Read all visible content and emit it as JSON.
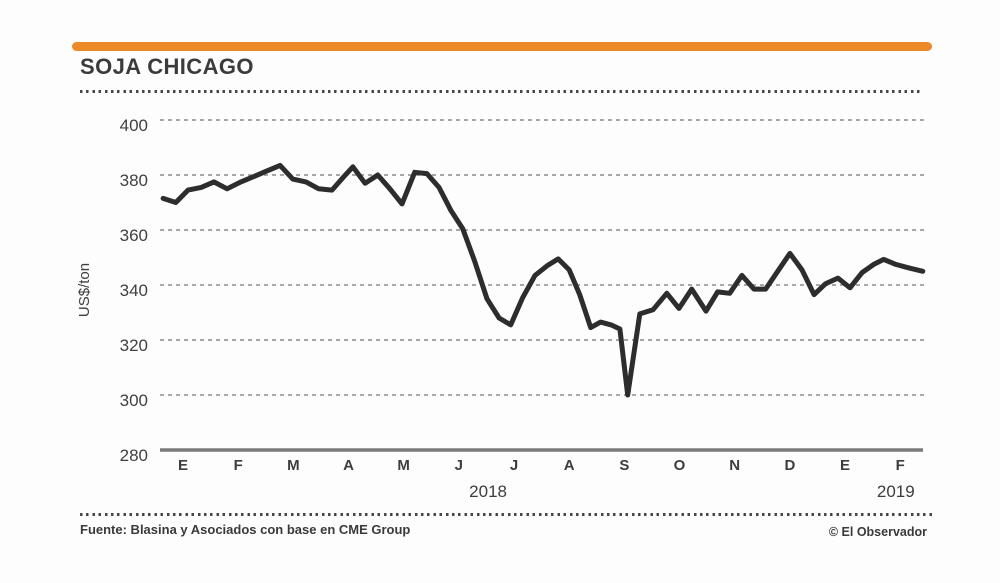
{
  "title": "SOJA CHICAGO",
  "colors": {
    "accent": "#EC8A28",
    "line": "#2D2D2D",
    "grid": "#9B9B9B",
    "axis": "#7A7A7A",
    "text": "#3D3D3D"
  },
  "footer": {
    "source": "Fuente: Blasina y Asociados con base en CME Group",
    "credit": "© El Observador"
  },
  "chart_data": {
    "type": "line",
    "title": "SOJA CHICAGO",
    "xlabel": "",
    "ylabel": "US$/ton",
    "ylim": [
      280,
      400
    ],
    "y_ticks": [
      400,
      380,
      360,
      340,
      320,
      300,
      280
    ],
    "grid": "horizontal dashed, solid bottom axis, no tick marks",
    "legend": "none",
    "x_tick_labels": [
      "E",
      "F",
      "M",
      "A",
      "M",
      "J",
      "J",
      "A",
      "S",
      "O",
      "N",
      "D",
      "E",
      "F"
    ],
    "year_labels": [
      {
        "label": "2018",
        "tick_pos": 5.53
      },
      {
        "label": "2019",
        "tick_pos": 12.92
      }
    ],
    "series": [
      {
        "name": "Soja Chicago (US$/ton)",
        "x_unit": "month index, 0 = Ene 2018 tick, 13 = Feb 2019 tick",
        "points": [
          [
            -0.36,
            371.5
          ],
          [
            -0.13,
            370.0
          ],
          [
            0.09,
            374.5
          ],
          [
            0.33,
            375.5
          ],
          [
            0.56,
            377.5
          ],
          [
            0.8,
            375.0
          ],
          [
            1.05,
            377.5
          ],
          [
            1.29,
            379.5
          ],
          [
            1.52,
            381.5
          ],
          [
            1.76,
            383.5
          ],
          [
            1.99,
            378.5
          ],
          [
            2.23,
            377.5
          ],
          [
            2.46,
            375.0
          ],
          [
            2.7,
            374.5
          ],
          [
            2.92,
            379.5
          ],
          [
            3.08,
            383.0
          ],
          [
            3.3,
            377.0
          ],
          [
            3.53,
            380.0
          ],
          [
            3.75,
            375.0
          ],
          [
            3.97,
            369.5
          ],
          [
            4.2,
            381.0
          ],
          [
            4.42,
            380.5
          ],
          [
            4.64,
            375.5
          ],
          [
            4.86,
            367.0
          ],
          [
            5.07,
            360.5
          ],
          [
            5.29,
            348.5
          ],
          [
            5.51,
            335.0
          ],
          [
            5.73,
            328.0
          ],
          [
            5.94,
            325.5
          ],
          [
            6.16,
            335.5
          ],
          [
            6.38,
            343.5
          ],
          [
            6.6,
            347.0
          ],
          [
            6.8,
            349.5
          ],
          [
            7.0,
            345.5
          ],
          [
            7.19,
            336.5
          ],
          [
            7.39,
            324.5
          ],
          [
            7.57,
            326.5
          ],
          [
            7.76,
            325.5
          ],
          [
            7.92,
            324.0
          ],
          [
            8.06,
            300.0
          ],
          [
            8.28,
            329.5
          ],
          [
            8.52,
            331.0
          ],
          [
            8.77,
            337.0
          ],
          [
            8.99,
            331.5
          ],
          [
            9.22,
            338.5
          ],
          [
            9.48,
            330.5
          ],
          [
            9.69,
            337.5
          ],
          [
            9.91,
            337.0
          ],
          [
            10.13,
            343.5
          ],
          [
            10.35,
            338.5
          ],
          [
            10.56,
            338.5
          ],
          [
            10.78,
            345.0
          ],
          [
            11.0,
            351.5
          ],
          [
            11.22,
            345.5
          ],
          [
            11.44,
            336.5
          ],
          [
            11.65,
            340.5
          ],
          [
            11.87,
            342.5
          ],
          [
            12.09,
            339.0
          ],
          [
            12.31,
            344.5
          ],
          [
            12.52,
            347.5
          ],
          [
            12.7,
            349.3
          ],
          [
            12.92,
            347.5
          ],
          [
            13.14,
            346.3
          ],
          [
            13.41,
            345.0
          ]
        ]
      }
    ]
  }
}
